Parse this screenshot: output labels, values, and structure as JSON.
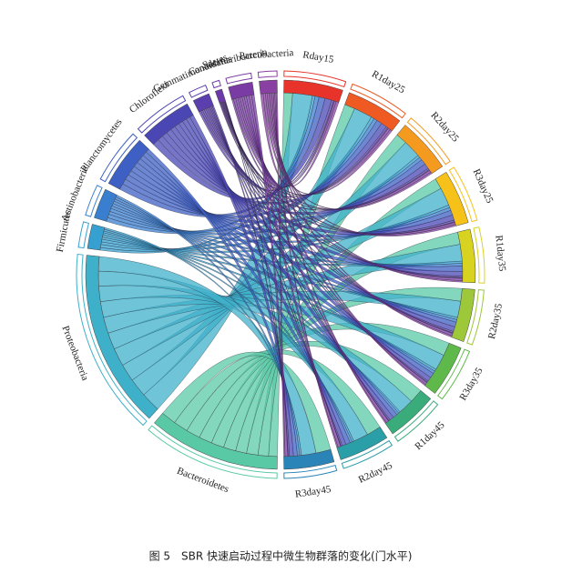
{
  "chart_data": {
    "type": "chord",
    "caption": "图 5　SBR 快速启动过程中微生物群落的变化(门水平)",
    "samples": [
      {
        "name": "Rday15",
        "color": "#e8332a"
      },
      {
        "name": "R1day25",
        "color": "#ef5a22"
      },
      {
        "name": "R2day25",
        "color": "#f39a1f"
      },
      {
        "name": "R3day25",
        "color": "#f6c21a"
      },
      {
        "name": "R1day35",
        "color": "#d8d321"
      },
      {
        "name": "R2day35",
        "color": "#9cc83a"
      },
      {
        "name": "R3day35",
        "color": "#5fb94a"
      },
      {
        "name": "R1day45",
        "color": "#3aab7a"
      },
      {
        "name": "R2day45",
        "color": "#2b9fa8"
      },
      {
        "name": "R3day45",
        "color": "#2b84b8"
      }
    ],
    "phyla": [
      {
        "name": "Bacteroidetes",
        "color": "#59c9a5"
      },
      {
        "name": "Proteobacteria",
        "color": "#3fb0c9"
      },
      {
        "name": "Firmicutes",
        "color": "#36a0d0"
      },
      {
        "name": "Actinobacteria",
        "color": "#3a7fcf"
      },
      {
        "name": "Planctomycetes",
        "color": "#3e5fc4"
      },
      {
        "name": "Chloroflexi",
        "color": "#4a47b5"
      },
      {
        "name": "Gemmatimonadetes",
        "color": "#5c3fae"
      },
      {
        "name": "Candidatus",
        "color": "#6c3aa8"
      },
      {
        "name": "Saccharibacteria",
        "color": "#7b3ba5"
      },
      {
        "name": "Parcubacteria",
        "color": "#8a3fa3"
      }
    ],
    "matrix": [
      [
        20000,
        45000,
        6000,
        9000,
        14000,
        15000,
        5000,
        2000,
        4000,
        6000
      ],
      [
        24000,
        42000,
        7000,
        8000,
        12000,
        13000,
        4000,
        2000,
        5000,
        5000
      ],
      [
        26000,
        40000,
        6000,
        7000,
        12000,
        12000,
        4000,
        1500,
        5000,
        4000
      ],
      [
        25000,
        41000,
        6000,
        7000,
        11000,
        12000,
        4000,
        1500,
        4500,
        4000
      ],
      [
        28000,
        38000,
        5000,
        6000,
        12000,
        11000,
        3500,
        1500,
        5000,
        3500
      ],
      [
        29000,
        37000,
        5000,
        6000,
        11000,
        11000,
        3500,
        1500,
        5000,
        3500
      ],
      [
        30000,
        36000,
        5000,
        6000,
        11000,
        10000,
        3000,
        1500,
        5000,
        3000
      ],
      [
        32000,
        35000,
        4000,
        5000,
        10000,
        10000,
        3000,
        1000,
        6000,
        3000
      ],
      [
        33000,
        34000,
        4000,
        5000,
        10000,
        9000,
        3000,
        1000,
        6000,
        3000
      ],
      [
        34000,
        33000,
        4000,
        5000,
        9000,
        9000,
        3000,
        1000,
        6000,
        3000
      ]
    ]
  }
}
